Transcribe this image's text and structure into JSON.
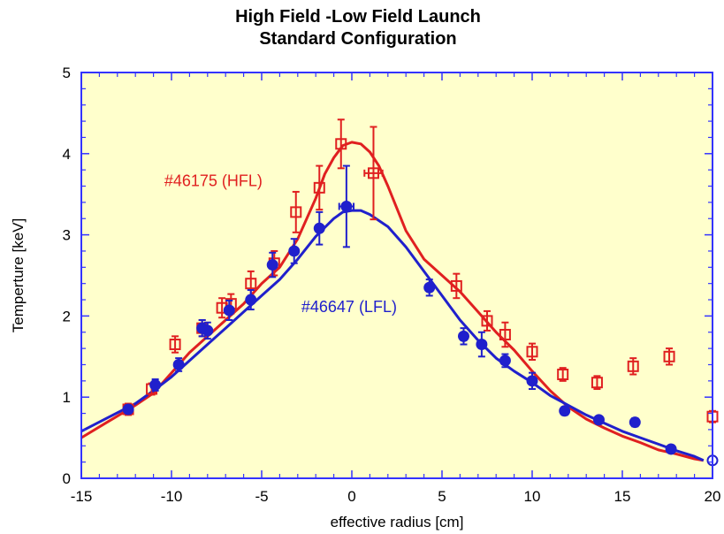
{
  "chart_data": {
    "type": "scatter",
    "title": "High Field -Low Field Launch",
    "subtitle": "Standard Configuration",
    "xlabel": "effective radius [cm]",
    "ylabel": "Temperture [keV]",
    "xlim": [
      -15,
      20
    ],
    "ylim": [
      0,
      5
    ],
    "x_ticks": [
      -15,
      -10,
      -5,
      0,
      5,
      10,
      15,
      20
    ],
    "y_ticks": [
      0,
      1,
      2,
      3,
      4,
      5
    ],
    "x_tick_labels": [
      "-15",
      "-10",
      "-5",
      "0",
      "5",
      "10",
      "15",
      "20"
    ],
    "y_tick_labels": [
      "0",
      "1",
      "2",
      "3",
      "4",
      "5"
    ],
    "grid": false,
    "background_color": "#ffffcc",
    "annotations": [
      {
        "text": "#46175 (HFL)",
        "x": -10.4,
        "y": 3.6,
        "color": "#e02020"
      },
      {
        "text": "#46647 (LFL)",
        "x": -2.8,
        "y": 2.05,
        "color": "#2020cc"
      }
    ],
    "series": [
      {
        "color": "#e02020",
        "marker": "square-open",
        "points": [
          {
            "x": -12.4,
            "y": 0.85,
            "err": 0.07
          },
          {
            "x": -11.1,
            "y": 1.1,
            "err": 0.07
          },
          {
            "x": -9.8,
            "y": 1.65,
            "err": 0.1
          },
          {
            "x": -8.3,
            "y": 1.85,
            "err": 0.1
          },
          {
            "x": -7.2,
            "y": 2.1,
            "err": 0.12
          },
          {
            "x": -6.7,
            "y": 2.15,
            "err": 0.12
          },
          {
            "x": -5.6,
            "y": 2.4,
            "err": 0.15
          },
          {
            "x": -4.3,
            "y": 2.65,
            "err": 0.15
          },
          {
            "x": -3.1,
            "y": 3.28,
            "err": 0.25
          },
          {
            "x": -1.8,
            "y": 3.58,
            "err": 0.27
          },
          {
            "x": -0.6,
            "y": 4.12,
            "err": 0.3
          },
          {
            "x": 1.2,
            "y": 3.76,
            "err": 0.57,
            "xerr": 0.5
          },
          {
            "x": 5.8,
            "y": 2.37,
            "err": 0.15
          },
          {
            "x": 7.5,
            "y": 1.94,
            "err": 0.12
          },
          {
            "x": 8.5,
            "y": 1.77,
            "err": 0.15
          },
          {
            "x": 10.0,
            "y": 1.56,
            "err": 0.1
          },
          {
            "x": 11.7,
            "y": 1.28,
            "err": 0.08
          },
          {
            "x": 13.6,
            "y": 1.18,
            "err": 0.08
          },
          {
            "x": 15.6,
            "y": 1.38,
            "err": 0.1
          },
          {
            "x": 17.6,
            "y": 1.5,
            "err": 0.1
          },
          {
            "x": 20.0,
            "y": 0.76,
            "err": 0.07
          }
        ],
        "fit": {
          "x": [
            -15,
            -13.5,
            -12,
            -11,
            -10,
            -9,
            -8,
            -7,
            -6,
            -5,
            -4,
            -3,
            -2,
            -1.5,
            -1,
            -0.5,
            0,
            0.5,
            1,
            1.5,
            2,
            3,
            4,
            5,
            6,
            7,
            8,
            9,
            10,
            11,
            12,
            13,
            14,
            15,
            16,
            17,
            18,
            19,
            19.5
          ],
          "y": [
            0.5,
            0.7,
            0.9,
            1.05,
            1.3,
            1.55,
            1.75,
            1.95,
            2.15,
            2.4,
            2.6,
            2.95,
            3.45,
            3.75,
            3.95,
            4.1,
            4.14,
            4.12,
            4.02,
            3.85,
            3.6,
            3.05,
            2.7,
            2.5,
            2.3,
            2.05,
            1.8,
            1.58,
            1.32,
            1.08,
            0.88,
            0.73,
            0.62,
            0.52,
            0.44,
            0.35,
            0.3,
            0.24,
            0.22
          ]
        }
      },
      {
        "color": "#2020cc",
        "marker": "circle-filled",
        "points": [
          {
            "x": -12.4,
            "y": 0.85,
            "err": 0.05
          },
          {
            "x": -10.9,
            "y": 1.15,
            "err": 0.07
          },
          {
            "x": -9.6,
            "y": 1.4,
            "err": 0.08
          },
          {
            "x": -8.3,
            "y": 1.85,
            "err": 0.1
          },
          {
            "x": -8.0,
            "y": 1.82,
            "err": 0.1
          },
          {
            "x": -6.8,
            "y": 2.07,
            "err": 0.12
          },
          {
            "x": -5.6,
            "y": 2.2,
            "err": 0.12
          },
          {
            "x": -4.4,
            "y": 2.63,
            "err": 0.15
          },
          {
            "x": -3.2,
            "y": 2.8,
            "err": 0.15
          },
          {
            "x": -1.8,
            "y": 3.08,
            "err": 0.2
          },
          {
            "x": -0.3,
            "y": 3.35,
            "err": 0.5,
            "xerr": 0.4
          },
          {
            "x": 4.3,
            "y": 2.35,
            "err": 0.1
          },
          {
            "x": 6.2,
            "y": 1.75,
            "err": 0.1
          },
          {
            "x": 7.2,
            "y": 1.65,
            "err": 0.15
          },
          {
            "x": 8.5,
            "y": 1.45,
            "err": 0.08
          },
          {
            "x": 10.0,
            "y": 1.2,
            "err": 0.1
          },
          {
            "x": 11.8,
            "y": 0.83,
            "err": 0.05
          },
          {
            "x": 13.7,
            "y": 0.72,
            "err": 0.04
          },
          {
            "x": 15.7,
            "y": 0.69,
            "err": 0.05
          },
          {
            "x": 17.7,
            "y": 0.36,
            "err": 0.04
          },
          {
            "x": 20.0,
            "y": 0.22,
            "err": 0.02
          }
        ],
        "fit": {
          "x": [
            -15,
            -13.5,
            -12,
            -11,
            -10,
            -9,
            -8,
            -7,
            -6,
            -5,
            -4,
            -3,
            -2,
            -1,
            -0.5,
            0,
            0.5,
            1,
            2,
            3,
            4,
            5,
            6,
            7,
            8,
            9,
            10,
            11,
            12,
            13,
            14,
            15,
            16,
            17,
            18,
            19,
            19.5
          ],
          "y": [
            0.58,
            0.75,
            0.92,
            1.08,
            1.25,
            1.45,
            1.65,
            1.85,
            2.05,
            2.25,
            2.45,
            2.7,
            2.98,
            3.2,
            3.28,
            3.3,
            3.3,
            3.25,
            3.1,
            2.85,
            2.55,
            2.25,
            1.95,
            1.7,
            1.48,
            1.32,
            1.18,
            1.02,
            0.9,
            0.78,
            0.68,
            0.58,
            0.5,
            0.42,
            0.34,
            0.27,
            0.22
          ]
        }
      }
    ]
  }
}
